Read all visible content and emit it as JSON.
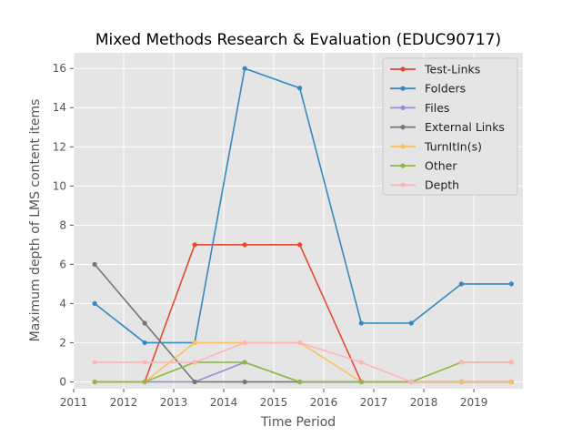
{
  "chart_data": {
    "type": "line",
    "title": "Mixed Methods Research & Evaluation (EDUC90717)",
    "xlabel": "Time Period",
    "ylabel": "Maximum depth of LMS content items",
    "xlim": [
      2011.0,
      2019.98
    ],
    "ylim": [
      -0.35,
      16.8
    ],
    "xticks": [
      2011,
      2012,
      2013,
      2014,
      2015,
      2016,
      2017,
      2018,
      2019
    ],
    "yticks": [
      0,
      2,
      4,
      6,
      8,
      10,
      12,
      14,
      16
    ],
    "grid": true,
    "legend_position": "top-right",
    "x": [
      2011.42,
      2012.42,
      2013.42,
      2014.42,
      2015.52,
      2016.75,
      2017.75,
      2018.75,
      2019.75
    ],
    "series": [
      {
        "name": "Test-Links",
        "color": "#e24a33",
        "values": [
          0,
          0,
          7,
          7,
          7,
          0,
          0,
          0,
          0
        ]
      },
      {
        "name": "Folders",
        "color": "#348abd",
        "values": [
          4,
          2,
          2,
          16,
          15,
          3,
          3,
          5,
          5
        ]
      },
      {
        "name": "Files",
        "color": "#988ed5",
        "values": [
          0,
          0,
          0,
          1,
          0,
          0,
          0,
          0,
          0
        ]
      },
      {
        "name": "External Links",
        "color": "#777777",
        "values": [
          6,
          3,
          0,
          0,
          0,
          0,
          0,
          0,
          0
        ]
      },
      {
        "name": "TurnItIn(s)",
        "color": "#fbc15e",
        "values": [
          0,
          0,
          2,
          2,
          2,
          0,
          0,
          0,
          0
        ]
      },
      {
        "name": "Other",
        "color": "#8eba42",
        "values": [
          0,
          0,
          1,
          1,
          0,
          0,
          0,
          1,
          1
        ]
      },
      {
        "name": "Depth",
        "color": "#ffb5b8",
        "values": [
          1,
          1,
          1,
          2,
          2,
          1,
          0,
          1,
          1
        ]
      }
    ],
    "depth_gap_after_index": 6
  }
}
